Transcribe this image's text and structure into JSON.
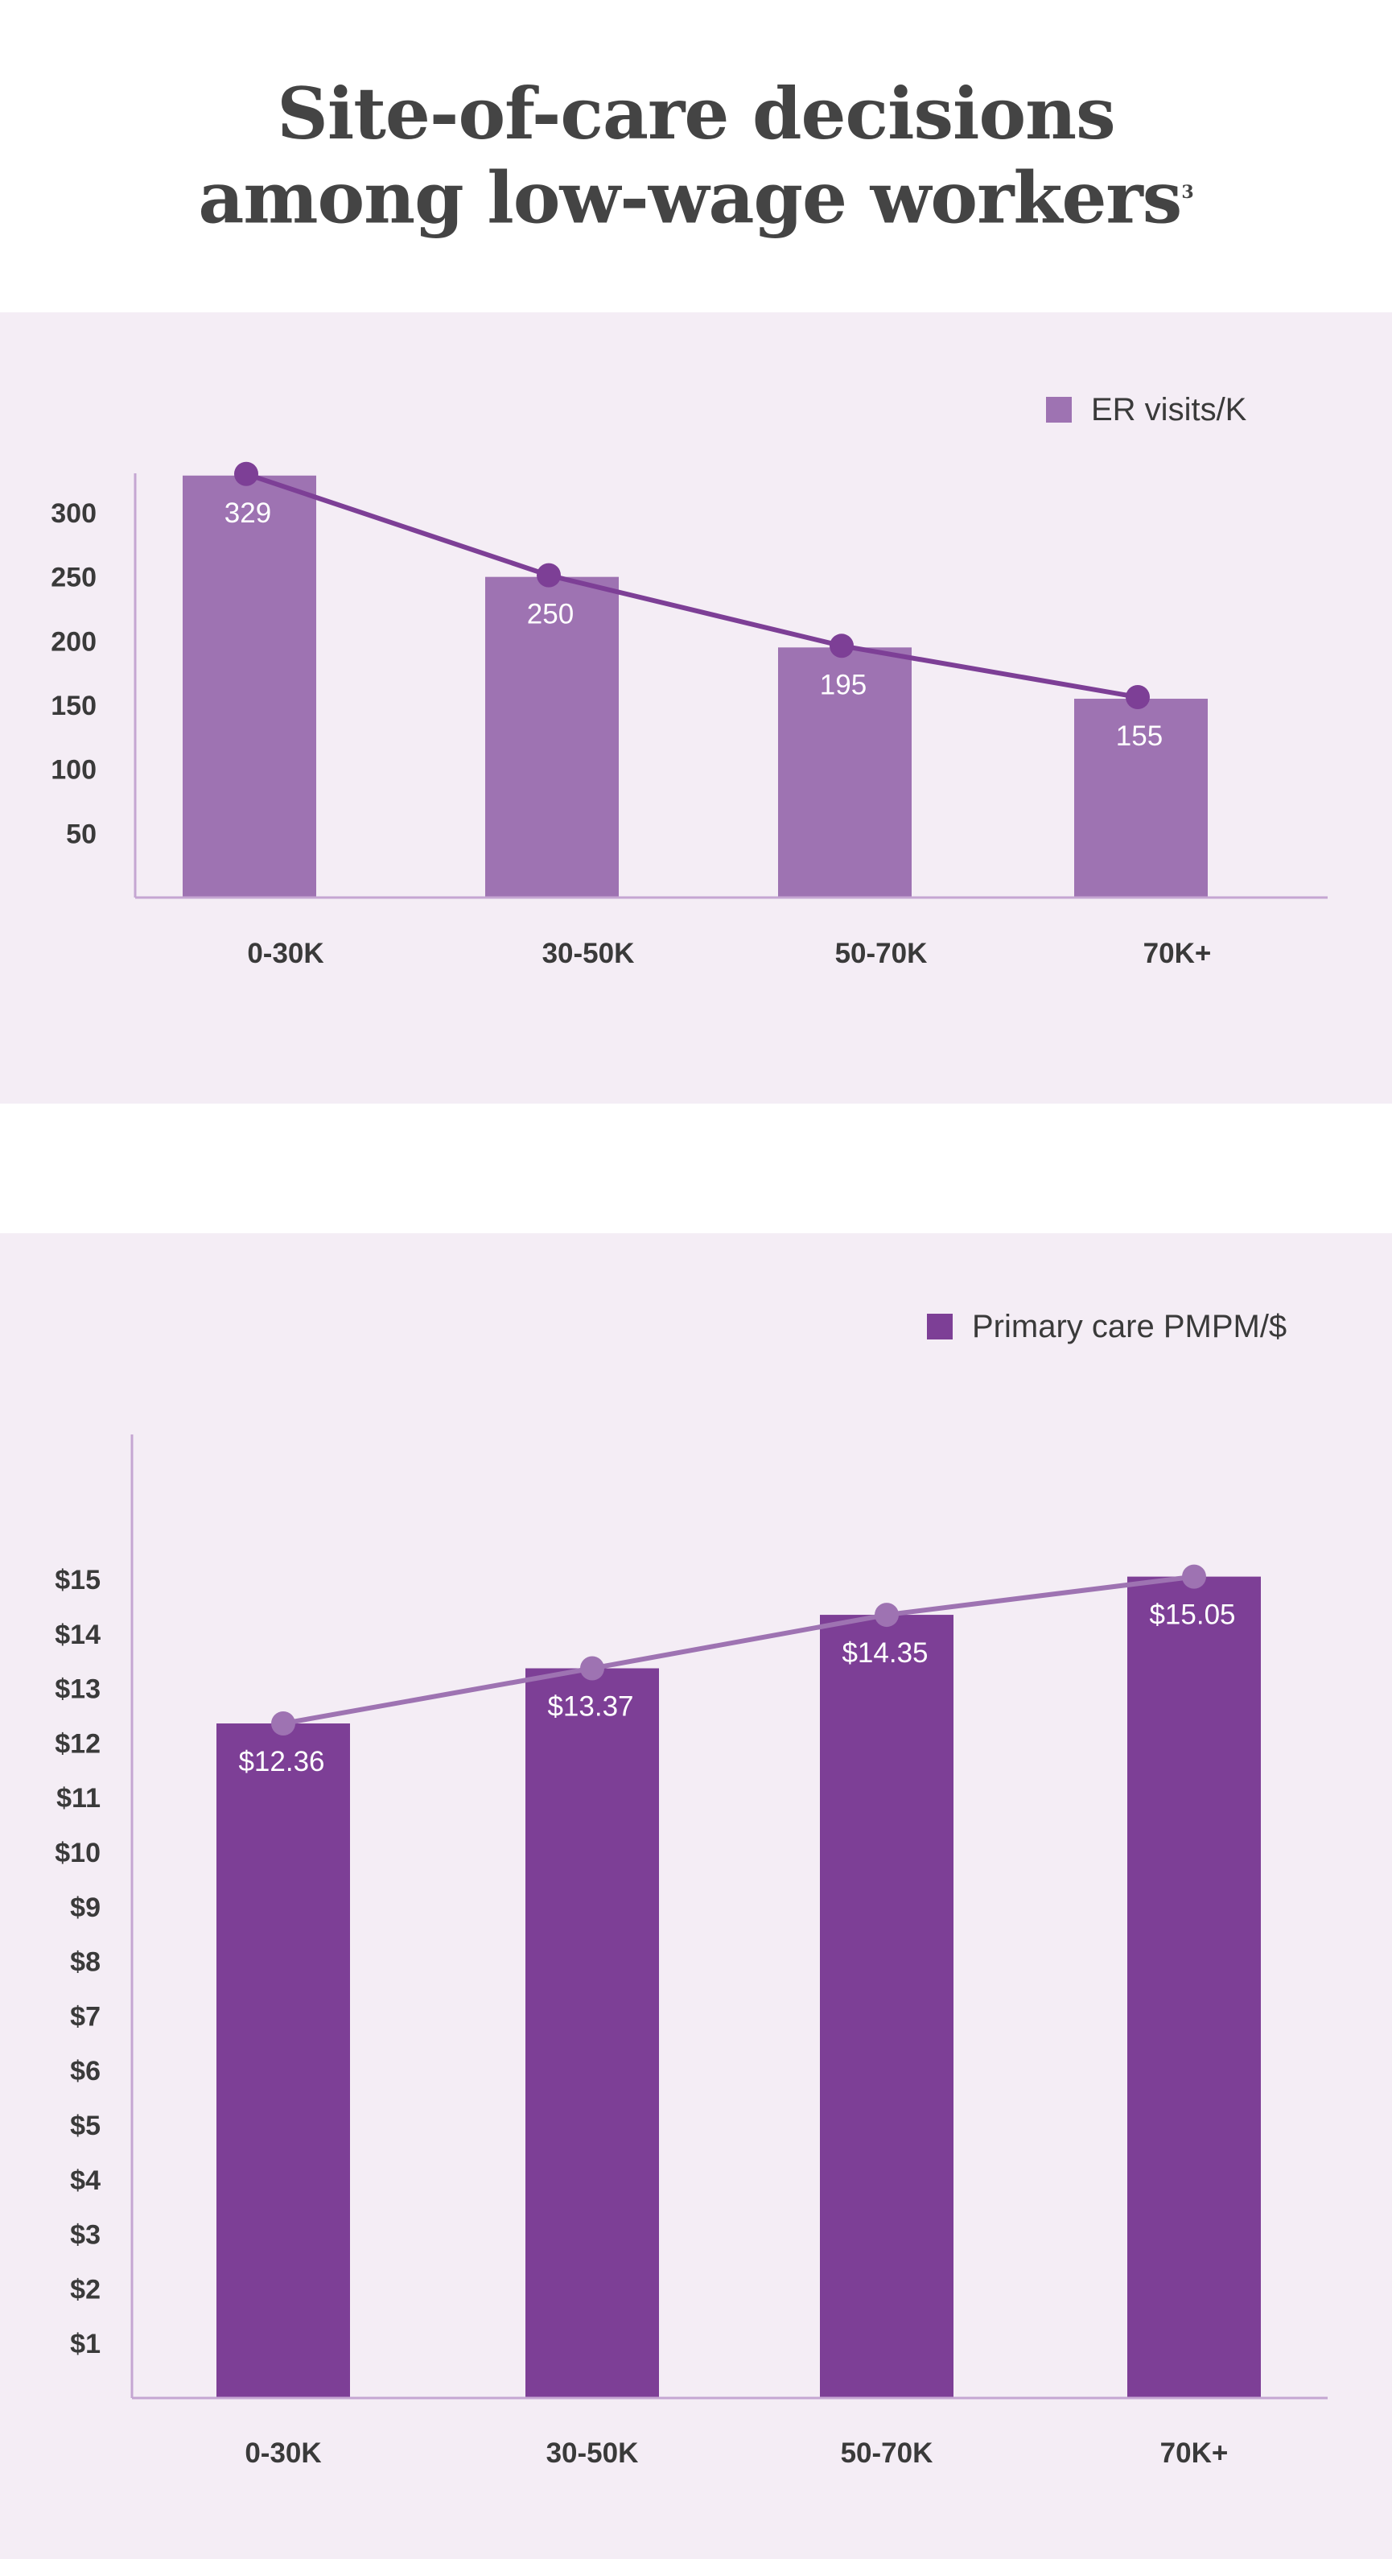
{
  "page": {
    "title_line1": "Site-of-care decisions",
    "title_line2": "among low-wage workers",
    "title_sup": "3"
  },
  "colors": {
    "panel_bg": "#f4edf5",
    "light_purple": "#9e73b2",
    "dark_purple": "#7d3f96",
    "axis": "#c5a6d2",
    "text": "#3a3a3a"
  },
  "chart_data": [
    {
      "type": "bar",
      "categories": [
        "0-30K",
        "30-50K",
        "50-70K",
        "70K+"
      ],
      "series": [
        {
          "name": "ER visits/K",
          "values": [
            329,
            250,
            195,
            155
          ]
        }
      ],
      "value_labels": [
        "329",
        "250",
        "195",
        "155"
      ],
      "line_overlay": true,
      "yticks": [
        50,
        100,
        150,
        200,
        250,
        300
      ],
      "ytick_labels": [
        "50",
        "100",
        "150",
        "200",
        "250",
        "300"
      ],
      "ylim": [
        0,
        320
      ],
      "legend": "ER visits/K",
      "legend_position": "top-right",
      "bar_color": "#9e73b2",
      "line_color": "#7d3f96",
      "title": "",
      "xlabel": "",
      "ylabel": ""
    },
    {
      "type": "bar",
      "categories": [
        "0-30K",
        "30-50K",
        "50-70K",
        "70K+"
      ],
      "series": [
        {
          "name": "Primary care PMPM/$",
          "values": [
            12.36,
            13.37,
            14.35,
            15.05
          ]
        }
      ],
      "value_labels": [
        "$12.36",
        "$13.37",
        "$14.35",
        "$15.05"
      ],
      "line_overlay": true,
      "yticks": [
        1,
        2,
        3,
        4,
        5,
        6,
        7,
        8,
        9,
        10,
        11,
        12,
        13,
        14,
        15
      ],
      "ytick_labels": [
        "$1",
        "$2",
        "$3",
        "$4",
        "$5",
        "$6",
        "$7",
        "$8",
        "$9",
        "$10",
        "$11",
        "$12",
        "$13",
        "$14",
        "$15"
      ],
      "ylim": [
        0,
        15
      ],
      "legend": "Primary care PMPM/$",
      "legend_position": "top-right",
      "bar_color": "#7d3f96",
      "line_color": "#9e73b2",
      "title": "",
      "xlabel": "",
      "ylabel": ""
    }
  ]
}
